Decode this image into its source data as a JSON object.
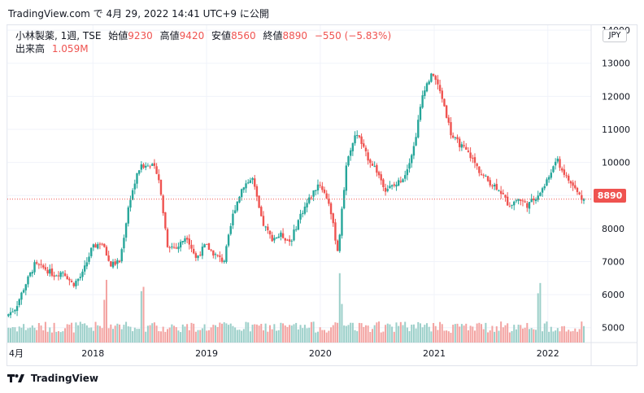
{
  "caption": "TradingView.com で 4月 29, 2022 14:41 UTC+9 に公開",
  "legend": {
    "symbol": "小林製薬, 1週, TSE",
    "open_label": "始値",
    "open": "9230",
    "high_label": "高値",
    "high": "9420",
    "low_label": "安値",
    "low": "8560",
    "close_label": "終値",
    "close": "8890",
    "change": "−550 (−5.83%)",
    "volume_label": "出来高",
    "volume": "1.059M"
  },
  "currency": "JPY",
  "last_price_tag": "8890",
  "footer_brand": "TradingView",
  "colors": {
    "up": "#26a69a",
    "down": "#ef5350",
    "up_volume": "#9bcfc9",
    "down_volume": "#f3a3a1"
  },
  "chart_data": {
    "type": "candlestick",
    "y_axis": {
      "ticks": [
        "5000",
        "6000",
        "7000",
        "8000",
        "9000",
        "10000",
        "11000",
        "12000",
        "13000",
        "14000"
      ],
      "range": [
        4550,
        14150
      ],
      "position": "right"
    },
    "x_axis": {
      "labels": [
        "4月",
        "2018",
        "2019",
        "2020",
        "2021",
        "2022"
      ],
      "dates": [
        "2017-04-01",
        "2018-01-01",
        "2019-01-01",
        "2020-01-01",
        "2021-01-01",
        "2022-01-01"
      ],
      "range": [
        "2017-04-01",
        "2022-05-20"
      ]
    },
    "last_close": 8890,
    "anchors": [
      [
        "2017-04-01",
        5350
      ],
      [
        "2017-05-01",
        5600
      ],
      [
        "2017-06-01",
        6300
      ],
      [
        "2017-07-01",
        6900
      ],
      [
        "2017-08-01",
        6800
      ],
      [
        "2017-09-01",
        6600
      ],
      [
        "2017-10-01",
        6700
      ],
      [
        "2017-11-01",
        6300
      ],
      [
        "2017-12-01",
        6600
      ],
      [
        "2018-01-01",
        7400
      ],
      [
        "2018-02-01",
        7600
      ],
      [
        "2018-03-01",
        6900
      ],
      [
        "2018-04-01",
        7000
      ],
      [
        "2018-05-01",
        8800
      ],
      [
        "2018-06-01",
        9800
      ],
      [
        "2018-07-01",
        10000
      ],
      [
        "2018-08-01",
        9700
      ],
      [
        "2018-09-01",
        7500
      ],
      [
        "2018-10-01",
        7400
      ],
      [
        "2018-11-01",
        7800
      ],
      [
        "2018-12-01",
        7100
      ],
      [
        "2019-01-01",
        7500
      ],
      [
        "2019-02-01",
        7200
      ],
      [
        "2019-03-01",
        7000
      ],
      [
        "2019-04-01",
        8500
      ],
      [
        "2019-05-01",
        9300
      ],
      [
        "2019-06-01",
        9500
      ],
      [
        "2019-07-01",
        8200
      ],
      [
        "2019-08-01",
        7700
      ],
      [
        "2019-09-01",
        7800
      ],
      [
        "2019-10-01",
        7600
      ],
      [
        "2019-11-01",
        8400
      ],
      [
        "2019-12-01",
        8900
      ],
      [
        "2020-01-01",
        9400
      ],
      [
        "2020-02-01",
        8800
      ],
      [
        "2020-03-01",
        7300
      ],
      [
        "2020-04-01",
        10200
      ],
      [
        "2020-05-01",
        10900
      ],
      [
        "2020-06-01",
        10200
      ],
      [
        "2020-07-01",
        9800
      ],
      [
        "2020-08-01",
        9200
      ],
      [
        "2020-09-01",
        9300
      ],
      [
        "2020-10-01",
        9600
      ],
      [
        "2020-11-01",
        10500
      ],
      [
        "2020-12-01",
        12200
      ],
      [
        "2021-01-01",
        12700
      ],
      [
        "2021-02-01",
        11900
      ],
      [
        "2021-03-01",
        10800
      ],
      [
        "2021-04-01",
        10500
      ],
      [
        "2021-05-01",
        10200
      ],
      [
        "2021-06-01",
        9700
      ],
      [
        "2021-07-01",
        9400
      ],
      [
        "2021-08-01",
        9200
      ],
      [
        "2021-09-01",
        8700
      ],
      [
        "2021-10-01",
        8900
      ],
      [
        "2021-11-01",
        8700
      ],
      [
        "2021-12-01",
        9000
      ],
      [
        "2022-01-01",
        9400
      ],
      [
        "2022-02-01",
        10100
      ],
      [
        "2022-03-01",
        9600
      ],
      [
        "2022-04-01",
        9200
      ],
      [
        "2022-04-25",
        8890
      ]
    ],
    "big_volume_dates": [
      "2018-06-08",
      "2020-03-06",
      "2021-12-03",
      "2018-02-09"
    ]
  }
}
